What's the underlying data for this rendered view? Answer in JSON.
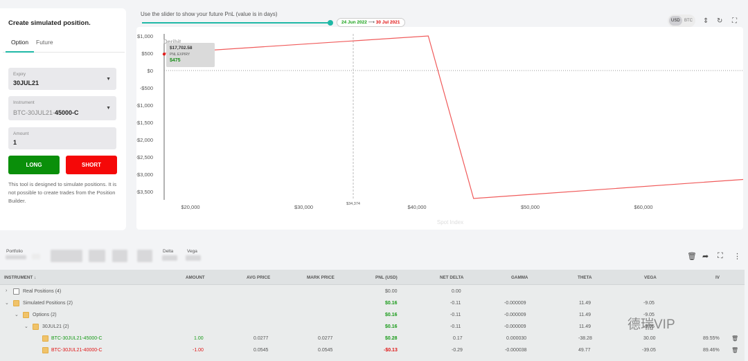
{
  "builder": {
    "title": "Create simulated position.",
    "tabs": [
      "Option",
      "Future"
    ],
    "expiry": {
      "label": "Expiry",
      "value": "30JUL21"
    },
    "instrument": {
      "label": "Instrument",
      "prefix": "BTC-30JUL21-",
      "value": "45000-C"
    },
    "amount": {
      "label": "Amount",
      "value": "1"
    },
    "long_label": "LONG",
    "short_label": "SHORT",
    "note": "This tool is designed to simulate positions. It is not possible to create trades from the Position Builder."
  },
  "slider": {
    "text": "Use the slider to show your future PnL (value is in days)",
    "from_date": "24 Jun 2022",
    "to_date": "30 Jul 2021"
  },
  "currency": {
    "options": [
      "USD",
      "BTC"
    ],
    "selected": "USD"
  },
  "chart_data": {
    "type": "line",
    "x": [
      15000,
      41000,
      45000,
      70000
    ],
    "y": [
      500,
      1000,
      -3700,
      -3150
    ],
    "xlim": [
      14000,
      70000
    ],
    "ylim": [
      -3750,
      1100
    ],
    "x_ticks": [
      20000,
      30000,
      40000,
      50000,
      60000
    ],
    "x_tick_labels": [
      "$20,000",
      "$30,000",
      "$40,000",
      "$50,000",
      "$60,000"
    ],
    "y_ticks": [
      1000,
      500,
      0,
      -500,
      -1000,
      -1500,
      -2000,
      -2500,
      -3000,
      -3500
    ],
    "y_tick_labels": [
      "$1,000",
      "$500",
      "$0",
      "-$500",
      "-$1,000",
      "-$1,500",
      "-$2,000",
      "-$2,500",
      "-$3,000",
      "-$3,500"
    ],
    "spot": 34374,
    "spot_label": "$34,374",
    "xlabel": "Spot Index",
    "line_color": "#f05a5a",
    "tooltip": {
      "price": "$17,702.58",
      "label": "PNL EXPIRY",
      "value": "$475"
    },
    "logo": "Deribit"
  },
  "mini_tabs": {
    "portfolio": "Portfolio",
    "delta": "Delta",
    "vega": "Vega"
  },
  "table": {
    "headers": [
      "INSTRUMENT",
      "AMOUNT",
      "AVG PRICE",
      "MARK PRICE",
      "PNL (USD)",
      "NET DELTA",
      "GAMMA",
      "THETA",
      "VEGA",
      "IV"
    ],
    "rows": [
      {
        "name": "Real Positions (4)",
        "amount": "",
        "avg": "",
        "mark": "",
        "pnl": "$0.00",
        "delta": "0.00",
        "gamma": "",
        "theta": "",
        "vega": "",
        "iv": ""
      },
      {
        "name": "Simulated Positions (2)",
        "amount": "",
        "avg": "",
        "mark": "",
        "pnl": "$0.16",
        "delta": "-0.11",
        "gamma": "-0.000009",
        "theta": "11.49",
        "vega": "-9.05",
        "iv": ""
      },
      {
        "name": "Options (2)",
        "amount": "",
        "avg": "",
        "mark": "",
        "pnl": "$0.16",
        "delta": "-0.11",
        "gamma": "-0.000009",
        "theta": "11.49",
        "vega": "-9.05",
        "iv": ""
      },
      {
        "name": "30JUL21 (2)",
        "amount": "",
        "avg": "",
        "mark": "",
        "pnl": "$0.16",
        "delta": "-0.11",
        "gamma": "-0.000009",
        "theta": "11.49",
        "vega": "-9.05",
        "iv": ""
      },
      {
        "name": "BTC-30JUL21-45000-C",
        "amount": "1.00",
        "avg": "0.0277",
        "mark": "0.0277",
        "pnl": "$0.28",
        "delta": "0.17",
        "gamma": "0.000030",
        "theta": "-38.28",
        "vega": "30.00",
        "iv": "89.55%"
      },
      {
        "name": "BTC-30JUL21-40000-C",
        "amount": "-1.00",
        "avg": "0.0545",
        "mark": "0.0545",
        "pnl": "-$0.13",
        "delta": "-0.29",
        "gamma": "-0.000038",
        "theta": "49.77",
        "vega": "-39.05",
        "iv": "89.46%"
      }
    ]
  },
  "watermark": "德瑞VIP"
}
